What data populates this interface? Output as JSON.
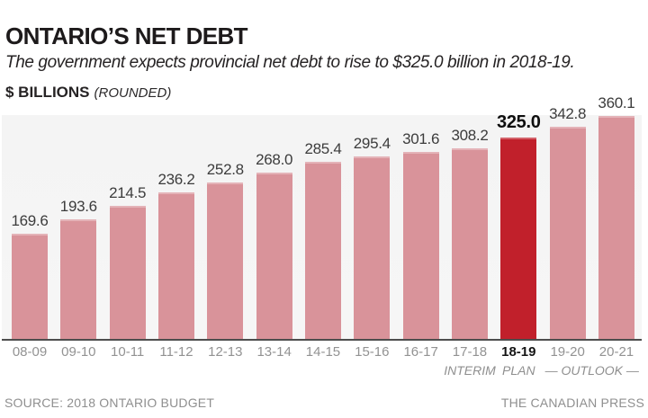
{
  "header": {
    "title": "ONTARIO’S NET DEBT",
    "subtitle": "The government expects provincial net debt to rise to $325.0 billion in 2018-19.",
    "units_label": "$ BILLIONS",
    "units_note": "(ROUNDED)"
  },
  "chart_data": {
    "type": "bar",
    "title": "ONTARIO’S NET DEBT",
    "ylabel": "$ BILLIONS (ROUNDED)",
    "categories": [
      "08-09",
      "09-10",
      "10-11",
      "11-12",
      "12-13",
      "13-14",
      "14-15",
      "15-16",
      "16-17",
      "17-18",
      "18-19",
      "19-20",
      "20-21"
    ],
    "values": [
      169.6,
      193.6,
      214.5,
      236.2,
      252.8,
      268.0,
      285.4,
      295.4,
      301.6,
      308.2,
      325.0,
      342.8,
      360.1
    ],
    "ylim": [
      0,
      360.1
    ],
    "grid": false,
    "legend": "none",
    "data_labels": true,
    "highlight_index": 10,
    "highlight_category": "18-19",
    "colors": {
      "bar": "#d9939a",
      "highlight_bar": "#c1202b",
      "value_label": "#3c3c3c",
      "highlight_value_label": "#0f0f0f",
      "axis_label": "#929292",
      "axis_line": "#4d4d4d",
      "plot_background": "#f4f4f4"
    },
    "axis_annotations": [
      {
        "text": "INTERIM",
        "span": [
          9,
          9
        ]
      },
      {
        "text": "PLAN",
        "span": [
          10,
          10
        ]
      },
      {
        "text": "— OUTLOOK —",
        "span": [
          11,
          12
        ]
      }
    ]
  },
  "footer": {
    "source": "SOURCE: 2018 ONTARIO BUDGET",
    "credit": "THE CANADIAN PRESS"
  }
}
